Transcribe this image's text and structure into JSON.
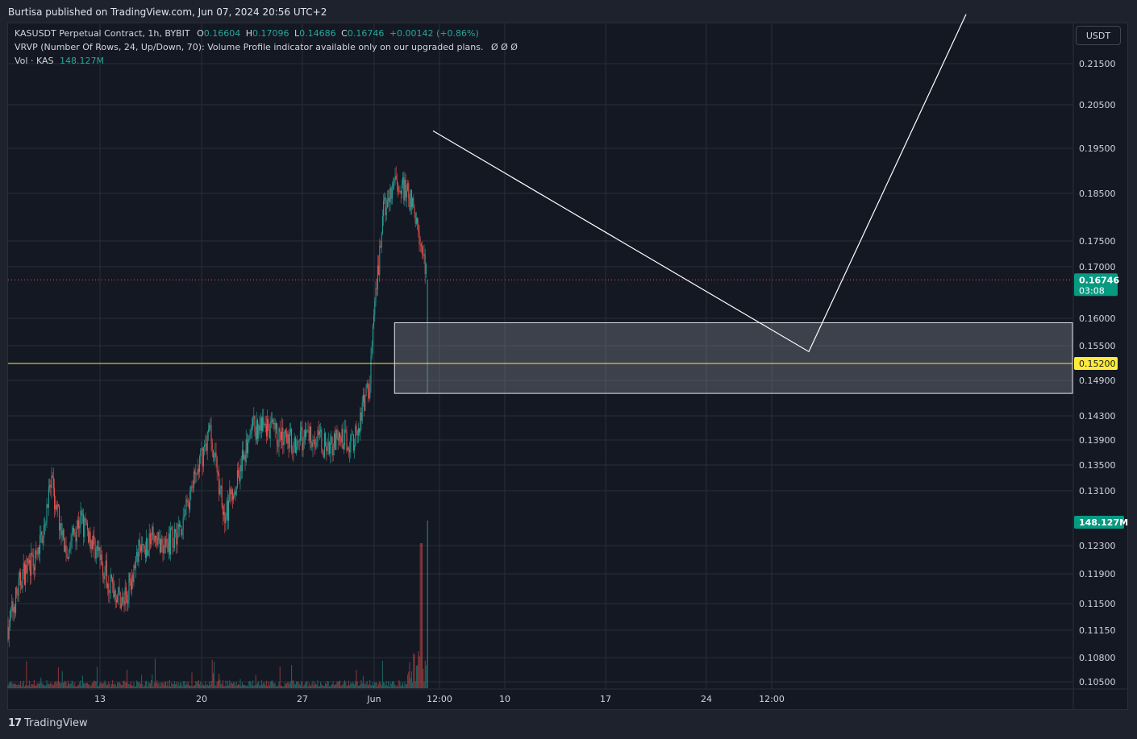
{
  "header": {
    "published": "Burtisa published on TradingView.com, Jun 07, 2024 20:56 UTC+2"
  },
  "legend": {
    "symbol": "KASUSDT Perpetual Contract, 1h, BYBIT",
    "o_label": "O",
    "o": "0.16604",
    "h_label": "H",
    "h": "0.17096",
    "l_label": "L",
    "l": "0.14686",
    "c_label": "C",
    "c": "0.16746",
    "change": "+0.00142 (+0.86%)",
    "vrvp": "VRVP (Number Of Rows, 24, Up/Down, 70): Volume Profile indicator available only on our upgraded plans.",
    "vrvp_icons": "Ø  Ø  Ø",
    "vol_label": "Vol · KAS",
    "vol_value": "148.127M"
  },
  "currency_button": "USDT",
  "footer": {
    "brand_mark": "17",
    "brand": "TradingView"
  },
  "colors": {
    "up": "#26a69a",
    "down": "#ef5350",
    "background": "#141823",
    "yellow_level": "#ffeb3b",
    "price_tag": "#089981",
    "zone_fill": "#787b86"
  },
  "chart_data": {
    "type": "candlestick",
    "symbol": "KASUSDT",
    "interval": "1h",
    "ylim": [
      0.104,
      0.227
    ],
    "y_ticks": [
      "0.21500",
      "0.20500",
      "0.19500",
      "0.18500",
      "0.17500",
      "0.17000",
      "0.16000",
      "0.15500",
      "0.14900",
      "0.14300",
      "0.13900",
      "0.13500",
      "0.13100",
      "0.12300",
      "0.11900",
      "0.11500",
      "0.11150",
      "0.10800",
      "0.10500"
    ],
    "x_ticks": [
      "13",
      "20",
      "27",
      "Jun",
      "12:00",
      "10",
      "17",
      "24",
      "12:00"
    ],
    "last_price": "0.16746",
    "countdown": "03:08",
    "level_price": "0.15200",
    "volume_tag": "148.127M",
    "zone": {
      "top": 0.1592,
      "bottom": 0.1468,
      "from": "Jun 5",
      "to": "right edge"
    },
    "series": [
      {
        "name": "price",
        "points": [
          [
            "May 9",
            0.112
          ],
          [
            "May 10",
            0.119
          ],
          [
            "May 11",
            0.121
          ],
          [
            "May 12",
            0.132
          ],
          [
            "May 13",
            0.122
          ],
          [
            "May 14",
            0.127
          ],
          [
            "May 15",
            0.123
          ],
          [
            "May 16",
            0.118
          ],
          [
            "May 17",
            0.115
          ],
          [
            "May 18",
            0.122
          ],
          [
            "May 19",
            0.124
          ],
          [
            "May 20",
            0.123
          ],
          [
            "May 21",
            0.126
          ],
          [
            "May 22",
            0.133
          ],
          [
            "May 23",
            0.141
          ],
          [
            "May 24",
            0.127
          ],
          [
            "May 25",
            0.134
          ],
          [
            "May 26",
            0.141
          ],
          [
            "May 27",
            0.141
          ],
          [
            "May 28",
            0.139
          ],
          [
            "May 29",
            0.139
          ],
          [
            "May 30",
            0.14
          ],
          [
            "May 31",
            0.138
          ],
          [
            "Jun 1",
            0.139
          ],
          [
            "Jun 2",
            0.139
          ],
          [
            "Jun 3",
            0.148
          ],
          [
            "Jun 4",
            0.181
          ],
          [
            "Jun 5",
            0.188
          ],
          [
            "Jun 6",
            0.183
          ],
          [
            "Jun 7",
            0.1675
          ]
        ]
      },
      {
        "name": "projection",
        "points": [
          [
            "Jun 6",
            0.199
          ],
          [
            "Jun 13",
            0.154
          ],
          [
            "Jun 16",
            0.227
          ]
        ]
      }
    ]
  }
}
